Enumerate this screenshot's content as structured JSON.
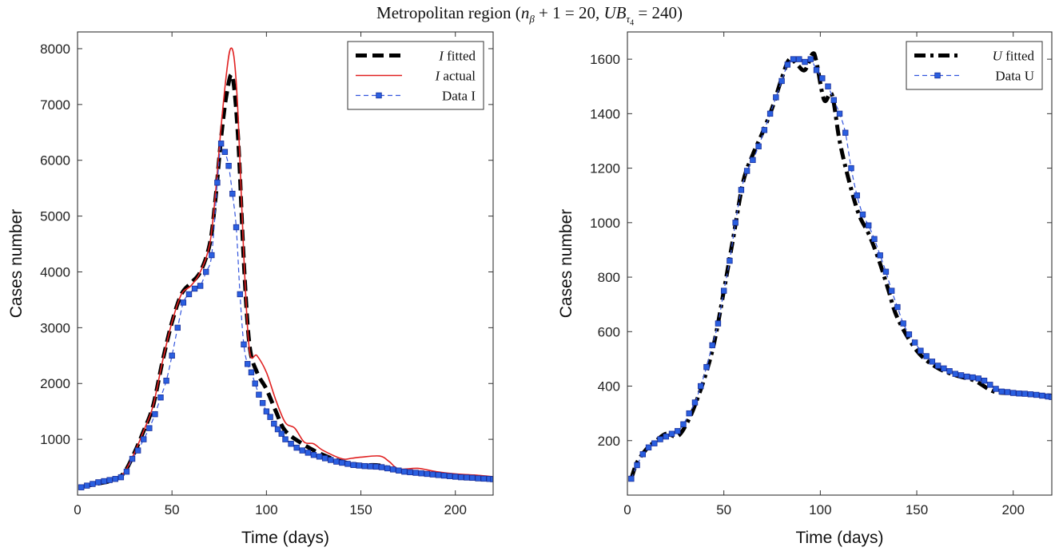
{
  "title": {
    "prefix": "Metropolitan region (",
    "n_var": "n",
    "n_sub": "β",
    "middle": " + 1 = 20, ",
    "ub_var": "UB",
    "ub_sub": "τ",
    "ub_subsub": "4",
    "suffix": " = 240)"
  },
  "colors": {
    "fitted": "#000000",
    "actual": "#e02020",
    "data_line": "#3355dd",
    "data_marker": "#2a5fe0",
    "marker_edge": "#1a2f9a"
  },
  "chart_data": [
    {
      "type": "line",
      "xlabel": "Time (days)",
      "ylabel": "Cases number",
      "xlim": [
        0,
        220
      ],
      "ylim": [
        0,
        8300
      ],
      "xticks": [
        0,
        50,
        100,
        150,
        200
      ],
      "yticks": [
        1000,
        2000,
        3000,
        4000,
        5000,
        6000,
        7000,
        8000
      ],
      "legend_position": "top-right",
      "series": [
        {
          "name": "I fitted",
          "legend_var": "I",
          "legend_rest": " fitted",
          "style": "thick-dashed",
          "x": [
            2,
            10,
            20,
            25,
            30,
            35,
            40,
            45,
            50,
            55,
            60,
            65,
            70,
            73,
            76,
            79,
            82,
            85,
            88,
            91,
            95,
            100,
            105,
            110,
            120,
            130,
            140,
            150,
            160,
            170,
            180,
            190,
            200,
            210,
            220
          ],
          "y": [
            150,
            200,
            280,
            420,
            750,
            1150,
            1600,
            2400,
            3100,
            3600,
            3800,
            4000,
            4500,
            5300,
            6400,
            7200,
            7500,
            6400,
            4200,
            2700,
            2200,
            1900,
            1500,
            1150,
            900,
            720,
            600,
            540,
            530,
            430,
            400,
            360,
            330,
            310,
            290
          ]
        },
        {
          "name": "I actual",
          "legend_var": "I",
          "legend_rest": " actual",
          "style": "thin-solid",
          "x": [
            2,
            10,
            20,
            25,
            30,
            35,
            40,
            45,
            50,
            55,
            60,
            65,
            70,
            73,
            76,
            79,
            81,
            83,
            85,
            88,
            91,
            95,
            100,
            105,
            110,
            115,
            120,
            125,
            130,
            140,
            145,
            150,
            160,
            165,
            170,
            180,
            190,
            200,
            210,
            220
          ],
          "y": [
            150,
            200,
            280,
            420,
            750,
            1150,
            1600,
            2400,
            3100,
            3600,
            3750,
            4000,
            4500,
            5400,
            6600,
            7600,
            8000,
            7800,
            6800,
            4300,
            2600,
            2500,
            2200,
            1700,
            1300,
            1200,
            950,
            920,
            800,
            650,
            660,
            680,
            700,
            600,
            470,
            480,
            420,
            380,
            360,
            330
          ]
        },
        {
          "name": "Data I",
          "legend_var": "",
          "legend_rest": "Data I",
          "style": "dashed-markers",
          "x": [
            2,
            5,
            8,
            11,
            14,
            17,
            20,
            23,
            26,
            29,
            32,
            35,
            38,
            41,
            44,
            47,
            50,
            53,
            56,
            59,
            62,
            65,
            68,
            71,
            74,
            76,
            78,
            80,
            82,
            84,
            86,
            88,
            90,
            92,
            94,
            96,
            98,
            100,
            102,
            104,
            106,
            108,
            110,
            113,
            116,
            119,
            122,
            125,
            128,
            131,
            134,
            137,
            140,
            143,
            146,
            149,
            152,
            155,
            158,
            161,
            164,
            167,
            170,
            173,
            176,
            179,
            182,
            185,
            188,
            191,
            194,
            197,
            200,
            203,
            206,
            209,
            212,
            215,
            218,
            220
          ],
          "y": [
            140,
            170,
            200,
            230,
            250,
            270,
            290,
            320,
            420,
            650,
            800,
            1000,
            1200,
            1450,
            1750,
            2050,
            2500,
            3000,
            3450,
            3600,
            3700,
            3750,
            4000,
            4300,
            5600,
            6300,
            6150,
            5900,
            5400,
            4800,
            3600,
            2700,
            2350,
            2200,
            2000,
            1800,
            1650,
            1500,
            1400,
            1280,
            1180,
            1100,
            1000,
            920,
            850,
            800,
            760,
            720,
            690,
            660,
            630,
            600,
            580,
            560,
            540,
            530,
            520,
            515,
            510,
            500,
            480,
            460,
            440,
            420,
            410,
            400,
            390,
            380,
            370,
            360,
            350,
            340,
            330,
            320,
            315,
            310,
            300,
            295,
            290,
            285
          ]
        }
      ]
    },
    {
      "type": "line",
      "xlabel": "Time (days)",
      "ylabel": "Cases number",
      "xlim": [
        0,
        220
      ],
      "ylim": [
        0,
        1700
      ],
      "xticks": [
        0,
        50,
        100,
        150,
        200
      ],
      "yticks": [
        200,
        400,
        600,
        800,
        1000,
        1200,
        1400,
        1600
      ],
      "legend_position": "top-right",
      "series": [
        {
          "name": "U fitted",
          "legend_var": "U",
          "legend_rest": " fitted",
          "style": "thick-dashdot",
          "x": [
            2,
            5,
            10,
            15,
            20,
            25,
            28,
            32,
            35,
            40,
            45,
            50,
            55,
            60,
            65,
            70,
            75,
            80,
            84,
            88,
            92,
            96,
            98,
            102,
            106,
            110,
            115,
            120,
            125,
            130,
            135,
            140,
            150,
            160,
            170,
            180,
            190,
            200,
            210,
            220
          ],
          "y": [
            60,
            120,
            170,
            200,
            225,
            215,
            230,
            280,
            330,
            430,
            560,
            750,
            950,
            1150,
            1250,
            1330,
            1420,
            1530,
            1600,
            1580,
            1560,
            1620,
            1590,
            1450,
            1470,
            1300,
            1150,
            1030,
            960,
            870,
            760,
            650,
            530,
            470,
            440,
            420,
            380,
            375,
            370,
            365
          ]
        },
        {
          "name": "Data U",
          "legend_var": "",
          "legend_rest": "Data U",
          "style": "dashed-markers",
          "x": [
            2,
            5,
            8,
            11,
            14,
            17,
            20,
            23,
            26,
            29,
            32,
            35,
            38,
            41,
            44,
            47,
            50,
            53,
            56,
            59,
            62,
            65,
            68,
            71,
            74,
            77,
            80,
            83,
            86,
            89,
            92,
            95,
            98,
            101,
            104,
            107,
            110,
            113,
            116,
            119,
            122,
            125,
            128,
            131,
            134,
            137,
            140,
            143,
            146,
            149,
            152,
            155,
            158,
            161,
            164,
            167,
            170,
            173,
            176,
            179,
            182,
            185,
            188,
            191,
            194,
            197,
            200,
            203,
            206,
            209,
            212,
            215,
            218,
            220
          ],
          "y": [
            60,
            110,
            150,
            175,
            190,
            205,
            215,
            225,
            235,
            260,
            300,
            340,
            400,
            470,
            550,
            630,
            750,
            860,
            1000,
            1120,
            1190,
            1230,
            1280,
            1340,
            1400,
            1460,
            1520,
            1580,
            1600,
            1600,
            1590,
            1600,
            1560,
            1530,
            1500,
            1450,
            1400,
            1330,
            1200,
            1100,
            1030,
            990,
            940,
            880,
            820,
            750,
            690,
            630,
            590,
            560,
            530,
            510,
            490,
            475,
            465,
            455,
            445,
            440,
            435,
            432,
            428,
            420,
            405,
            390,
            380,
            378,
            375,
            373,
            372,
            370,
            368,
            365,
            362,
            360
          ]
        }
      ]
    }
  ]
}
